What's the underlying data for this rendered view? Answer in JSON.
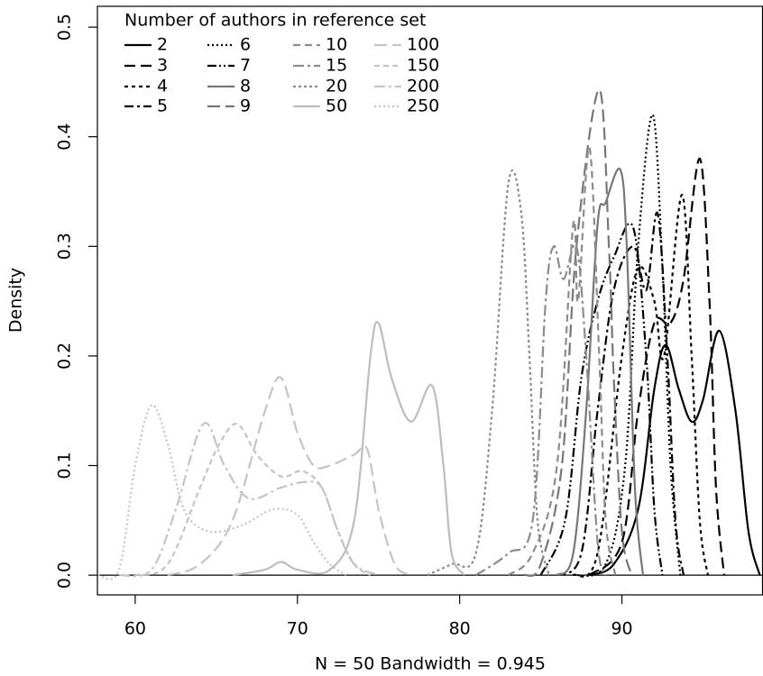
{
  "chart_data": {
    "type": "line",
    "x_label": "N = 50  Bandwidth = 0.945",
    "y_label": "Density",
    "legend_title": "Number of authors in reference set",
    "legend": "top-left",
    "grid": false,
    "xlim": [
      57.67,
      98.67
    ],
    "ylim": [
      -0.018,
      0.519
    ],
    "xticks": [
      60,
      70,
      80,
      90
    ],
    "yticks": [
      {
        "value": 0,
        "label": "0.0"
      },
      {
        "value": 0.1,
        "label": "0.1"
      },
      {
        "value": 0.2,
        "label": "0.2"
      },
      {
        "value": 0.3,
        "label": "0.3"
      },
      {
        "value": 0.4,
        "label": "0.4"
      },
      {
        "value": 0.5,
        "label": "0.5"
      }
    ],
    "series": [
      {
        "name": "2",
        "color": "#000000",
        "dash": "none",
        "x": [
          88,
          89.5,
          91,
          92,
          92.7,
          93.5,
          94.3,
          95,
          96,
          97,
          97.8,
          98.5
        ],
        "values": [
          0,
          0.01,
          0.06,
          0.17,
          0.21,
          0.17,
          0.14,
          0.16,
          0.223,
          0.15,
          0.04,
          0
        ]
      },
      {
        "name": "3",
        "color": "#000000",
        "dash": "12 6",
        "x": [
          88,
          90,
          91,
          92,
          93,
          93.8,
          94.8,
          95.4,
          95.8,
          96.3
        ],
        "values": [
          0,
          0.03,
          0.15,
          0.23,
          0.23,
          0.27,
          0.38,
          0.25,
          0.08,
          0
        ]
      },
      {
        "name": "4",
        "color": "#000000",
        "dash": "4 4",
        "x": [
          87,
          88.5,
          90,
          91,
          92,
          92.6,
          93.7,
          94.3,
          94.8,
          95.3
        ],
        "values": [
          0,
          0.02,
          0.2,
          0.28,
          0.25,
          0.2,
          0.347,
          0.2,
          0.05,
          0
        ]
      },
      {
        "name": "5",
        "color": "#000000",
        "dash": "10 4 3 4",
        "x": [
          86,
          87.5,
          88.5,
          89.5,
          90.7,
          91.5,
          92.2,
          92.8,
          93.3,
          93.8
        ],
        "values": [
          0,
          0.02,
          0.15,
          0.26,
          0.3,
          0.26,
          0.33,
          0.2,
          0.05,
          0
        ]
      },
      {
        "name": "6",
        "color": "#000000",
        "dash": "2 3",
        "x": [
          87,
          89,
          90.2,
          91,
          91.9,
          92.5,
          93,
          93.6
        ],
        "values": [
          0,
          0.01,
          0.1,
          0.3,
          0.42,
          0.28,
          0.1,
          0
        ]
      },
      {
        "name": "7",
        "color": "#000000",
        "dash": "10 3 2 3 2 3",
        "x": [
          85,
          86.5,
          87.5,
          88.5,
          89.5,
          90.7,
          91.5,
          92,
          92.5
        ],
        "values": [
          0,
          0.05,
          0.18,
          0.25,
          0.29,
          0.317,
          0.2,
          0.06,
          0
        ]
      },
      {
        "name": "8",
        "color": "#777777",
        "dash": "none",
        "x": [
          86,
          87,
          87.8,
          88.5,
          89,
          89.9,
          90.3,
          90.8,
          91.3
        ],
        "values": [
          0,
          0.02,
          0.15,
          0.32,
          0.34,
          0.37,
          0.3,
          0.08,
          0
        ]
      },
      {
        "name": "9",
        "color": "#777777",
        "dash": "14 6",
        "x": [
          84,
          85,
          86.3,
          87.2,
          88.6,
          89.2,
          89.5,
          90,
          90.6
        ],
        "values": [
          0,
          0.01,
          0.1,
          0.3,
          0.443,
          0.3,
          0.18,
          0.04,
          0
        ]
      },
      {
        "name": "10",
        "color": "#8c8c8c",
        "dash": "8 5",
        "x": [
          83,
          84.5,
          86,
          87,
          87.3,
          88,
          88.6,
          89,
          89.6
        ],
        "values": [
          0,
          0.02,
          0.1,
          0.32,
          0.25,
          0.39,
          0.2,
          0.05,
          0
        ]
      },
      {
        "name": "15",
        "color": "#8c8c8c",
        "dash": "12 4 3 4",
        "x": [
          81,
          83,
          84.5,
          85.3,
          85.8,
          86.4,
          87.2,
          87.8,
          88.5,
          89
        ],
        "values": [
          0,
          0.02,
          0.05,
          0.25,
          0.3,
          0.27,
          0.3,
          0.2,
          0.03,
          0
        ]
      },
      {
        "name": "20",
        "color": "#8c8c8c",
        "dash": "3 3",
        "x": [
          78,
          79.5,
          81,
          82,
          83,
          83.8,
          84.3,
          84.8,
          85.5
        ],
        "values": [
          0,
          0.01,
          0.02,
          0.15,
          0.357,
          0.33,
          0.2,
          0.05,
          0
        ]
      },
      {
        "name": "50",
        "color": "#bdbdbd",
        "dash": "none",
        "x": [
          66,
          68,
          69,
          70,
          72,
          73.5,
          74.5,
          75,
          75.8,
          77,
          78.3,
          79,
          79.5,
          80.3
        ],
        "values": [
          0,
          0.005,
          0.012,
          0.005,
          0.005,
          0.05,
          0.2,
          0.23,
          0.18,
          0.14,
          0.173,
          0.1,
          0.02,
          0
        ]
      },
      {
        "name": "100",
        "color": "#c4c4c4",
        "dash": "14 6",
        "x": [
          62,
          64,
          66,
          68,
          69,
          70,
          71,
          72,
          73.5,
          74.3,
          75,
          76,
          77
        ],
        "values": [
          0,
          0.01,
          0.05,
          0.15,
          0.18,
          0.13,
          0.1,
          0.1,
          0.11,
          0.115,
          0.06,
          0.01,
          0
        ]
      },
      {
        "name": "150",
        "color": "#c4c4c4",
        "dash": "6 4",
        "x": [
          60,
          62,
          64,
          65.2,
          66.3,
          67.5,
          69,
          70.3,
          71.5,
          72.5,
          73.5,
          74.5
        ],
        "values": [
          0,
          0.01,
          0.08,
          0.12,
          0.138,
          0.11,
          0.09,
          0.095,
          0.08,
          0.04,
          0.01,
          0
        ]
      },
      {
        "name": "200",
        "color": "#c4c4c4",
        "dash": "12 4 3 4",
        "x": [
          59,
          61,
          62.5,
          64.2,
          65.5,
          67,
          69,
          70.5,
          71.5,
          72.5,
          73.5,
          75
        ],
        "values": [
          0,
          0.005,
          0.06,
          0.138,
          0.1,
          0.07,
          0.08,
          0.085,
          0.08,
          0.04,
          0.01,
          0
        ]
      },
      {
        "name": "250",
        "color": "#c4c4c4",
        "dash": "2 3",
        "x": [
          57.7,
          59,
          60,
          61,
          62,
          63,
          64.5,
          66.5,
          68.5,
          70,
          71,
          72,
          73
        ],
        "values": [
          0,
          0.005,
          0.1,
          0.155,
          0.12,
          0.06,
          0.04,
          0.045,
          0.06,
          0.055,
          0.03,
          0.01,
          0
        ]
      }
    ]
  }
}
